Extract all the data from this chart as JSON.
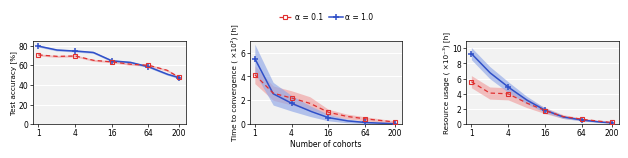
{
  "x_tick_positions": [
    1,
    4,
    16,
    64,
    200
  ],
  "x_tick_labels": [
    "1",
    "4",
    "16",
    "64",
    "200"
  ],
  "plot1": {
    "ylabel": "Test accuracy [%]",
    "ylim": [
      0,
      85
    ],
    "yticks": [
      0,
      20,
      40,
      60,
      80
    ],
    "red_mean": [
      70.5,
      69.0,
      69.5,
      65.0,
      63.5,
      61.0,
      60.0,
      55.0,
      48.0
    ],
    "blue_mean": [
      79.5,
      75.5,
      74.5,
      73.0,
      64.5,
      63.0,
      58.5,
      51.0,
      47.5
    ],
    "red_lo": [
      69.5,
      68.0,
      68.5,
      64.0,
      62.5,
      60.0,
      59.0,
      54.0,
      47.0
    ],
    "red_hi": [
      71.5,
      70.0,
      70.5,
      66.0,
      64.5,
      62.0,
      61.0,
      56.0,
      49.0
    ],
    "blue_lo": [
      78.5,
      74.5,
      73.5,
      72.0,
      63.5,
      62.0,
      57.5,
      50.0,
      46.5
    ],
    "blue_hi": [
      80.5,
      76.5,
      75.5,
      74.0,
      65.5,
      64.0,
      59.5,
      52.0,
      48.5
    ]
  },
  "plot2": {
    "ylabel": "Time to convergence ( ×10²) [h]",
    "ylim": [
      0,
      7
    ],
    "yticks": [
      0,
      2,
      4,
      6
    ],
    "xlabel": "Number of cohorts",
    "red_mean": [
      4.15,
      2.6,
      2.2,
      1.75,
      1.0,
      0.65,
      0.45,
      0.28,
      0.18
    ],
    "blue_mean": [
      5.5,
      2.55,
      1.75,
      1.1,
      0.55,
      0.28,
      0.14,
      0.07,
      0.04
    ],
    "red_lo": [
      3.4,
      2.0,
      1.6,
      1.2,
      0.75,
      0.45,
      0.28,
      0.15,
      0.08
    ],
    "red_hi": [
      4.9,
      3.2,
      2.8,
      2.3,
      1.25,
      0.85,
      0.62,
      0.41,
      0.28
    ],
    "blue_lo": [
      4.3,
      1.6,
      1.1,
      0.65,
      0.28,
      0.12,
      0.05,
      0.02,
      0.01
    ],
    "blue_hi": [
      6.7,
      3.5,
      2.4,
      1.55,
      0.82,
      0.44,
      0.23,
      0.12,
      0.07
    ]
  },
  "plot3": {
    "ylabel": "Resource usage ( ×10⁻³) [h]",
    "ylim": [
      0,
      11
    ],
    "yticks": [
      0,
      2,
      4,
      6,
      8,
      10
    ],
    "red_mean": [
      5.6,
      4.1,
      4.0,
      2.8,
      1.8,
      1.0,
      0.65,
      0.38,
      0.22
    ],
    "blue_mean": [
      9.3,
      6.8,
      4.9,
      3.2,
      1.85,
      0.95,
      0.55,
      0.28,
      0.18
    ],
    "red_lo": [
      4.8,
      3.3,
      3.2,
      2.2,
      1.4,
      0.75,
      0.48,
      0.28,
      0.15
    ],
    "red_hi": [
      6.4,
      4.9,
      4.8,
      3.4,
      2.2,
      1.25,
      0.82,
      0.48,
      0.29
    ],
    "blue_lo": [
      8.5,
      6.0,
      4.2,
      2.7,
      1.55,
      0.75,
      0.42,
      0.2,
      0.12
    ],
    "blue_hi": [
      10.1,
      7.6,
      5.6,
      3.7,
      2.15,
      1.15,
      0.68,
      0.36,
      0.24
    ]
  },
  "legend": {
    "red_label": "α = 0.1",
    "blue_label": "α = 1.0"
  },
  "red_color": "#e03030",
  "blue_color": "#3050c8",
  "red_fill": "#f0a0a0",
  "blue_fill": "#90a8e8",
  "bg_color": "#f2f2f2"
}
